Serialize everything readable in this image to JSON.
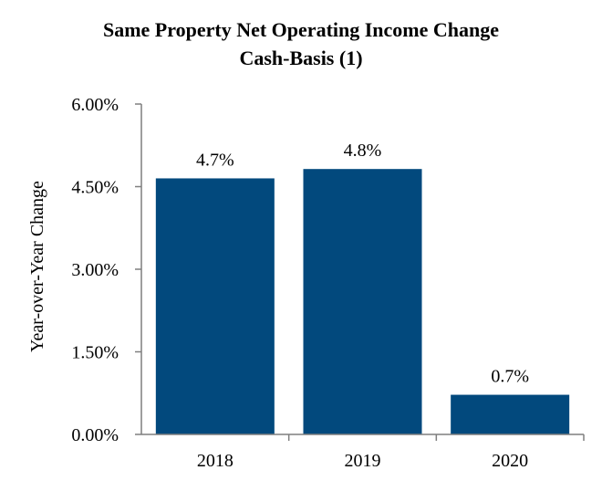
{
  "chart_data": {
    "type": "bar",
    "title": "Same Property Net Operating Income Change",
    "subtitle": "Cash-Basis (1)",
    "xlabel": "",
    "ylabel": "Year-over-Year Change",
    "categories": [
      "2018",
      "2019",
      "2020"
    ],
    "values": [
      4.65,
      4.82,
      0.72
    ],
    "data_labels": [
      "4.7%",
      "4.8%",
      "0.7%"
    ],
    "ylim": [
      0,
      6
    ],
    "yticks": [
      0,
      1.5,
      3,
      4.5,
      6
    ],
    "ytick_labels": [
      "0.00%",
      "1.50%",
      "3.00%",
      "4.50%",
      "6.00%"
    ],
    "grid": false,
    "legend": "none",
    "bar_color": "#02497d",
    "axis_color": "#7f7f7f"
  }
}
